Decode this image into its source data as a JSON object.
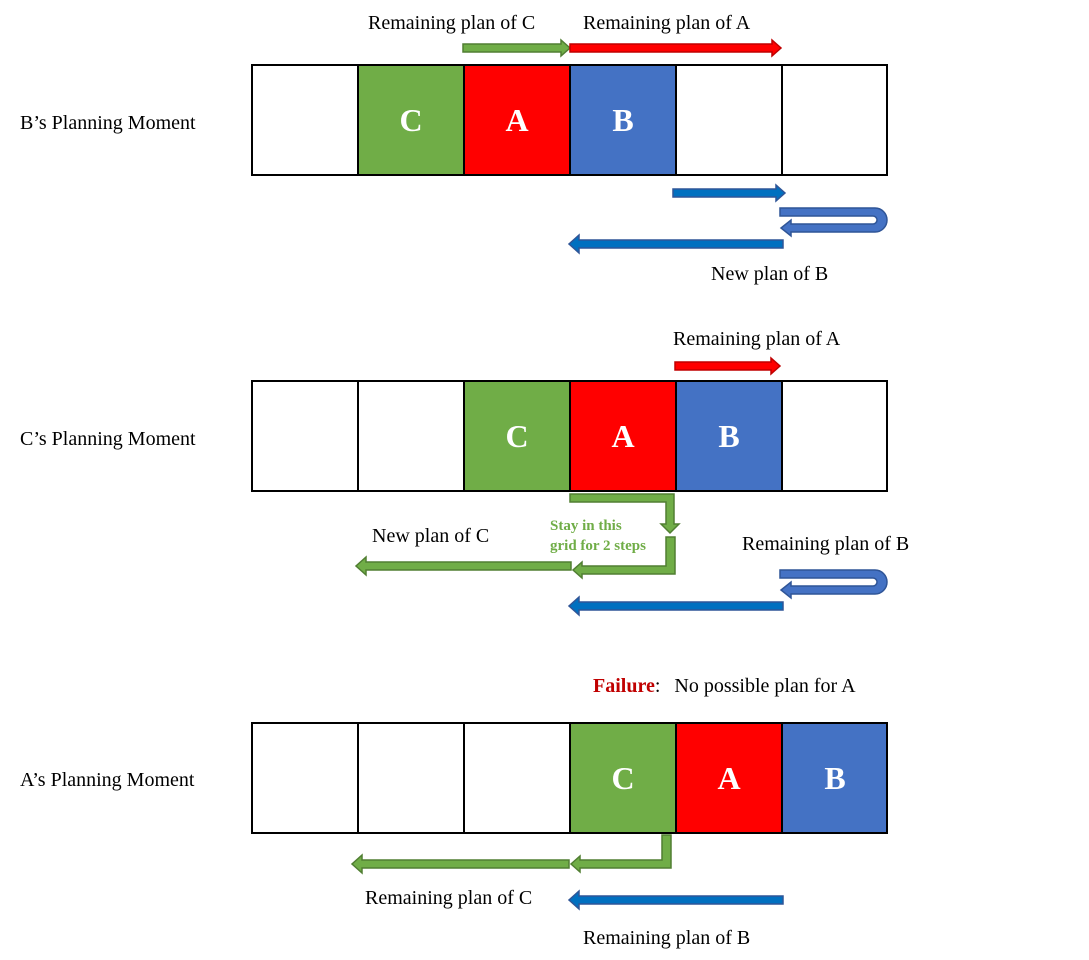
{
  "colors": {
    "agent_a": "#ff0000",
    "agent_b": "#4472c4",
    "agent_c": "#70ad47",
    "empty": "#ffffff",
    "failure": "#c00000",
    "arrow_outline_a": "#c00000",
    "arrow_outline_b": "#2f5597",
    "arrow_outline_c": "#507e32"
  },
  "panels": [
    {
      "moment_label": "B’s Planning Moment",
      "cells": [
        "",
        "C",
        "A",
        "B",
        "",
        ""
      ],
      "labels": {
        "remaining_c": "Remaining plan of C",
        "remaining_a": "Remaining plan of A",
        "new_b": "New plan of B"
      }
    },
    {
      "moment_label": "C’s Planning Moment",
      "cells": [
        "",
        "",
        "C",
        "A",
        "B",
        ""
      ],
      "labels": {
        "remaining_a": "Remaining plan of A",
        "new_c": "New plan of C",
        "stay_line1": "Stay in this",
        "stay_line2": "grid for 2 steps",
        "remaining_b": "Remaining plan of B"
      }
    },
    {
      "moment_label": "A’s Planning Moment",
      "cells": [
        "",
        "",
        "",
        "C",
        "A",
        "B"
      ],
      "labels": {
        "failure_word": "Failure",
        "failure_sep": ":",
        "failure_text": "No possible plan for A",
        "remaining_c": "Remaining plan of C",
        "remaining_b": "Remaining plan of B"
      }
    }
  ]
}
